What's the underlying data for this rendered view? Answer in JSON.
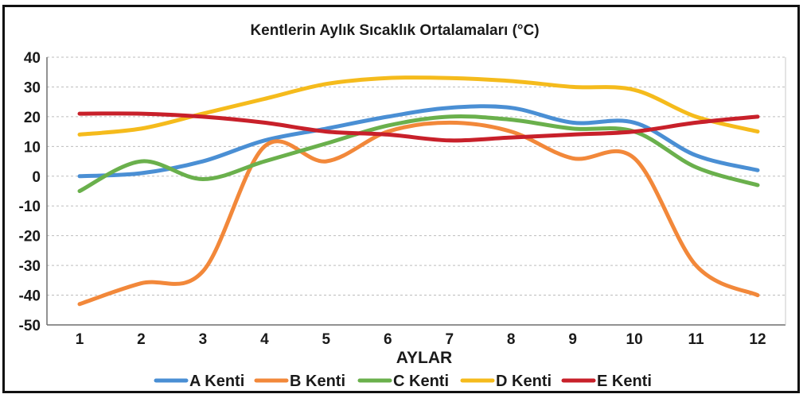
{
  "chart_data": {
    "type": "line",
    "title": "Kentlerin Aylık Sıcaklık Ortalamaları (°C)",
    "xlabel": "AYLAR",
    "ylabel": "",
    "categories": [
      "1",
      "2",
      "3",
      "4",
      "5",
      "6",
      "7",
      "8",
      "9",
      "10",
      "11",
      "12"
    ],
    "y_ticks": [
      "40",
      "30",
      "20",
      "10",
      "0",
      "-10",
      "-20",
      "-30",
      "-40",
      "-50"
    ],
    "ylim": [
      -50,
      40
    ],
    "grid": "horizontal-dashed",
    "legend_position": "bottom",
    "series": [
      {
        "name": "A Kenti",
        "color": "#4a8fd4",
        "values": [
          0,
          1,
          5,
          12,
          16,
          20,
          23,
          23,
          18,
          18,
          7,
          2
        ]
      },
      {
        "name": "B Kenti",
        "color": "#f2883a",
        "values": [
          -43,
          -36,
          -32,
          10,
          5,
          15,
          18,
          15,
          6,
          6,
          -30,
          -40
        ]
      },
      {
        "name": "C Kenti",
        "color": "#6ab04c",
        "values": [
          -5,
          5,
          -1,
          5,
          11,
          17,
          20,
          19,
          16,
          15,
          3,
          -3
        ]
      },
      {
        "name": "D Kenti",
        "color": "#f5bb1c",
        "values": [
          14,
          16,
          21,
          26,
          31,
          33,
          33,
          32,
          30,
          29,
          20,
          15
        ]
      },
      {
        "name": "E Kenti",
        "color": "#c8202a",
        "values": [
          21,
          21,
          20,
          18,
          15,
          14,
          12,
          13,
          14,
          15,
          18,
          20
        ]
      }
    ]
  }
}
